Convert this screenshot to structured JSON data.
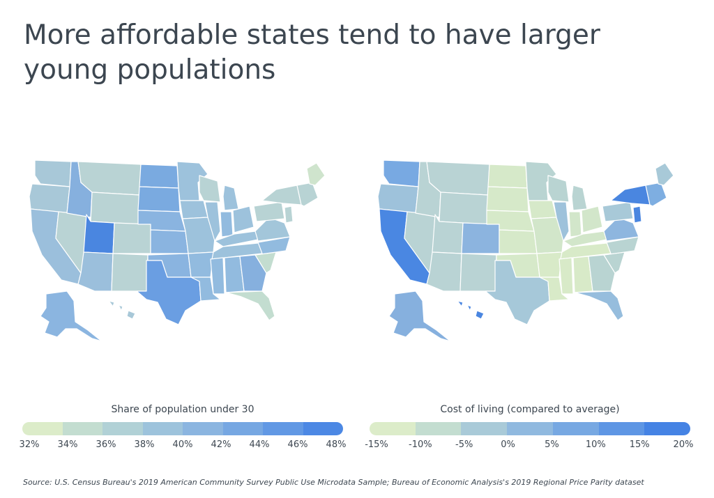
{
  "title": "More affordable states tend to have larger young populations",
  "maps": {
    "left": {
      "legend_title": "Share of population under 30",
      "ticks": [
        "32%",
        "34%",
        "36%",
        "38%",
        "40%",
        "42%",
        "44%",
        "46%",
        "48%"
      ],
      "colors": [
        "#dcecc9",
        "#c3ddd0",
        "#b1d1d6",
        "#9dc3dc",
        "#8bb5e0",
        "#76a7e2",
        "#6198e4",
        "#4c88e4"
      ],
      "region_colors": {
        "west": "#9bbfdc",
        "northwest": "#a8c8d8",
        "mountain": "#b9d3d4",
        "utah": "#4a86e0",
        "idaho": "#86b0de",
        "dakotas": "#7aaae0",
        "plains": "#8ab4e0",
        "texas": "#6a9ee2",
        "midwest": "#9dc2dc",
        "south": "#92bbdf",
        "southeast": "#a3c6da",
        "northeast": "#b8d3d4",
        "maine": "#cfe4cd",
        "florida": "#c3ddd0",
        "alaska": "#8bb5e0",
        "hawaii": "#a8c8d8"
      }
    },
    "right": {
      "legend_title": "Cost of living (compared to average)",
      "ticks": [
        "-15%",
        "-10%",
        "-5%",
        "0%",
        "5%",
        "10%",
        "15%",
        "20%"
      ],
      "colors": [
        "#dcecc9",
        "#c3ddd0",
        "#a9cad8",
        "#90b9df",
        "#77a8e2",
        "#5e96e4",
        "#4583e4"
      ],
      "region_colors": {
        "california": "#4a87e2",
        "northwest": "#9ec2db",
        "washington": "#78a9e2",
        "mountain": "#b9d3d4",
        "colorado": "#8cb4df",
        "plains": "#d6e9c9",
        "midwest": "#d2e6ca",
        "illinois": "#9ec2db",
        "texas": "#a6c8d9",
        "south": "#d8eac8",
        "southeast": "#b9d4d2",
        "florida": "#96bddd",
        "virginia": "#8eb6df",
        "newyork": "#4a86e0",
        "newengland": "#7eaee1",
        "alaska": "#86b0de",
        "hawaii": "#4a86e0",
        "northeast": "#a8c9d8"
      }
    }
  },
  "source": "Source:  U.S. Census Bureau's 2019 American Community Survey Public Use Microdata Sample; Bureau of Economic Analysis's 2019 Regional Price Parity dataset"
}
